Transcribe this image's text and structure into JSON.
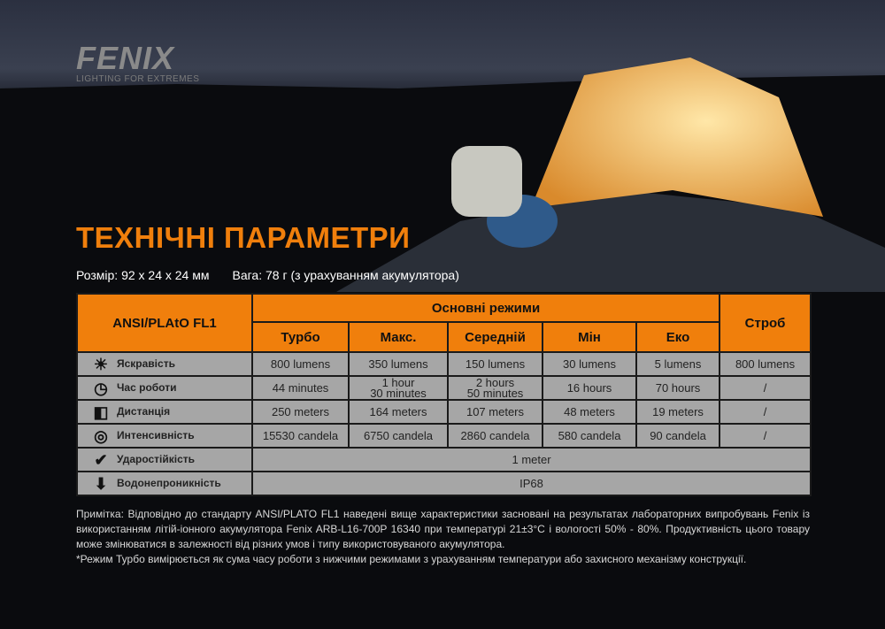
{
  "brand": {
    "name": "FENIX",
    "tagline": "LIGHTING FOR EXTREMES"
  },
  "title": "ТЕХНІЧНІ ПАРАМЕТРИ",
  "size": "Розмір: 92 x 24 x 24 мм",
  "weight": "Вага: 78 г (з урахуванням акумулятора)",
  "colors": {
    "accent": "#f07f0c",
    "table_cell": "#a6a6a6"
  },
  "table": {
    "corner": "ANSI/PLAtO FL1",
    "group": "Основні режими",
    "strobe": "Строб",
    "modes": [
      "Турбо",
      "Макс.",
      "Середній",
      "Мін",
      "Еко"
    ],
    "rows": [
      {
        "icon": "brightness-icon",
        "label": "Яскравість",
        "values": [
          "800 lumens",
          "350 lumens",
          "150 lumens",
          "30 lumens",
          "5 lumens",
          "800 lumens"
        ]
      },
      {
        "icon": "clock-icon",
        "label": "Час роботи",
        "values": [
          "44 minutes",
          "1 hour\n30 minutes",
          "2 hours\n50 minutes",
          "16 hours",
          "70 hours",
          "/"
        ]
      },
      {
        "icon": "distance-icon",
        "label": "Дистанція",
        "values": [
          "250 meters",
          "164 meters",
          "107 meters",
          "48 meters",
          "19 meters",
          "/"
        ]
      },
      {
        "icon": "target-icon",
        "label": "Интенсивність",
        "values": [
          "15530 candela",
          "6750 candela",
          "2860 candela",
          "580 candela",
          "90 candela",
          "/"
        ]
      }
    ],
    "impact": {
      "icon": "impact-icon",
      "label": "Ударостійкість",
      "value": "1 meter"
    },
    "water": {
      "icon": "waterproof-icon",
      "label": "Водонепроникність",
      "value": "IP68"
    }
  },
  "note": [
    "Примітка: Відповідно до стандарту ANSI/PLATO FL1 наведені вище характеристики засновані на результатах лабораторних випробувань Fenix із використанням літій-іонного акумулятора Fenix ARB-L16-700P 16340 при температурі 21±3°C і вологості 50% - 80%. Продуктивність цього товару може змінюватися в залежності від різних умов і типу використовуваного акумулятора.",
    "*Режим Турбо вимірюється як сума часу роботи з нижчими режимами з урахуванням температури або захисного механізму конструкції."
  ]
}
